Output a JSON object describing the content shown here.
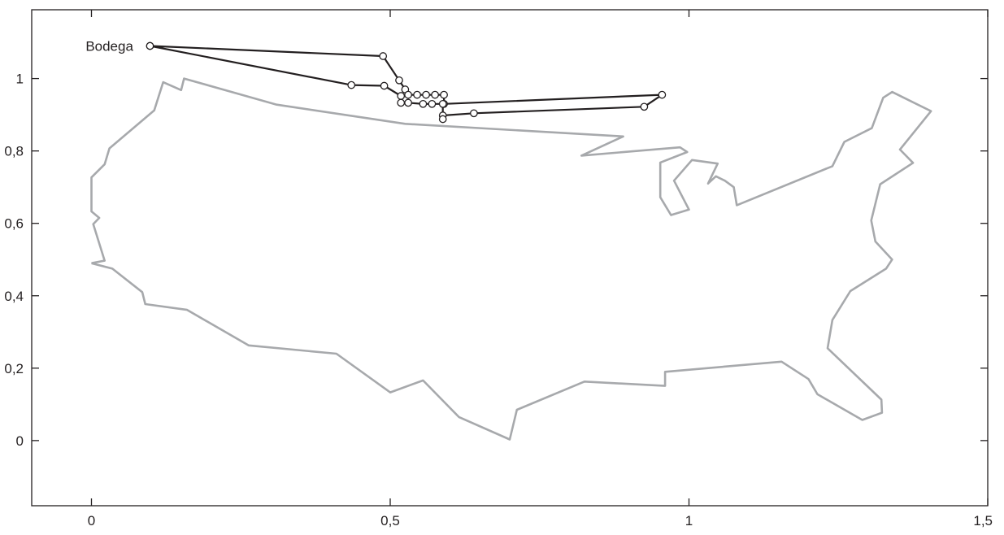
{
  "chart_data": {
    "type": "line",
    "title": "",
    "xlabel": "",
    "ylabel": "",
    "xlim": [
      -0.1,
      1.5
    ],
    "ylim": [
      -0.18,
      1.19
    ],
    "x_ticks": [
      {
        "value": 0,
        "label": "0"
      },
      {
        "value": 0.5,
        "label": "0,5"
      },
      {
        "value": 1,
        "label": "1"
      },
      {
        "value": 1.5,
        "label": "1,5"
      }
    ],
    "y_ticks": [
      {
        "value": 0,
        "label": "0"
      },
      {
        "value": 0.2,
        "label": "0,2"
      },
      {
        "value": 0.4,
        "label": "0,4"
      },
      {
        "value": 0.6,
        "label": "0,6"
      },
      {
        "value": 0.8,
        "label": "0,8"
      },
      {
        "value": 1,
        "label": "1"
      }
    ],
    "grid": false,
    "annotations": [
      {
        "text": "Bodega",
        "x": 0.07,
        "y": 1.09
      }
    ],
    "outline": {
      "color": "#a7a9ac",
      "points": [
        [
          0.0,
          0.49
        ],
        [
          0.035,
          0.475
        ],
        [
          0.085,
          0.41
        ],
        [
          0.09,
          0.377
        ],
        [
          0.16,
          0.361
        ],
        [
          0.263,
          0.263
        ],
        [
          0.41,
          0.24
        ],
        [
          0.5,
          0.133
        ],
        [
          0.555,
          0.166
        ],
        [
          0.615,
          0.065
        ],
        [
          0.7,
          0.003
        ],
        [
          0.712,
          0.085
        ],
        [
          0.825,
          0.163
        ],
        [
          0.96,
          0.151
        ],
        [
          0.96,
          0.19
        ],
        [
          1.155,
          0.218
        ],
        [
          1.2,
          0.17
        ],
        [
          1.215,
          0.128
        ],
        [
          1.29,
          0.057
        ],
        [
          1.323,
          0.077
        ],
        [
          1.322,
          0.113
        ],
        [
          1.232,
          0.255
        ],
        [
          1.24,
          0.333
        ],
        [
          1.27,
          0.413
        ],
        [
          1.33,
          0.475
        ],
        [
          1.34,
          0.5
        ],
        [
          1.312,
          0.55
        ],
        [
          1.305,
          0.608
        ],
        [
          1.32,
          0.708
        ],
        [
          1.375,
          0.767
        ],
        [
          1.353,
          0.804
        ],
        [
          1.405,
          0.91
        ],
        [
          1.34,
          0.963
        ],
        [
          1.325,
          0.947
        ],
        [
          1.306,
          0.863
        ],
        [
          1.26,
          0.825
        ],
        [
          1.24,
          0.758
        ],
        [
          1.08,
          0.65
        ],
        [
          1.075,
          0.7
        ],
        [
          1.06,
          0.718
        ],
        [
          1.045,
          0.73
        ],
        [
          1.032,
          0.71
        ],
        [
          1.048,
          0.765
        ],
        [
          1.005,
          0.775
        ],
        [
          0.975,
          0.718
        ],
        [
          1.0,
          0.638
        ],
        [
          0.97,
          0.623
        ],
        [
          0.952,
          0.672
        ],
        [
          0.952,
          0.768
        ],
        [
          0.997,
          0.797
        ],
        [
          0.985,
          0.81
        ],
        [
          0.82,
          0.787
        ],
        [
          0.89,
          0.84
        ],
        [
          0.525,
          0.875
        ],
        [
          0.31,
          0.928
        ],
        [
          0.155,
          1.0
        ],
        [
          0.15,
          0.968
        ],
        [
          0.12,
          0.99
        ],
        [
          0.105,
          0.912
        ],
        [
          0.03,
          0.807
        ],
        [
          0.022,
          0.763
        ],
        [
          0.0,
          0.727
        ],
        [
          0.0,
          0.633
        ],
        [
          0.013,
          0.615
        ],
        [
          0.003,
          0.598
        ],
        [
          0.022,
          0.497
        ],
        [
          0.0,
          0.49
        ]
      ]
    },
    "series": [
      {
        "color": "#231f20",
        "points": [
          [
            0.098,
            1.09
          ],
          [
            0.488,
            1.062
          ],
          [
            0.515,
            0.995
          ],
          [
            0.525,
            0.97
          ],
          [
            0.53,
            0.955
          ],
          [
            0.545,
            0.955
          ],
          [
            0.56,
            0.955
          ],
          [
            0.575,
            0.955
          ],
          [
            0.59,
            0.955
          ],
          [
            0.59,
            0.93
          ],
          [
            0.955,
            0.955
          ],
          [
            0.925,
            0.922
          ],
          [
            0.64,
            0.904
          ],
          [
            0.588,
            0.898
          ],
          [
            0.588,
            0.888
          ],
          [
            0.588,
            0.93
          ],
          [
            0.57,
            0.93
          ],
          [
            0.555,
            0.93
          ],
          [
            0.53,
            0.933
          ],
          [
            0.518,
            0.933
          ],
          [
            0.518,
            0.952
          ],
          [
            0.49,
            0.98
          ],
          [
            0.435,
            0.982
          ],
          [
            0.098,
            1.09
          ]
        ]
      }
    ]
  }
}
